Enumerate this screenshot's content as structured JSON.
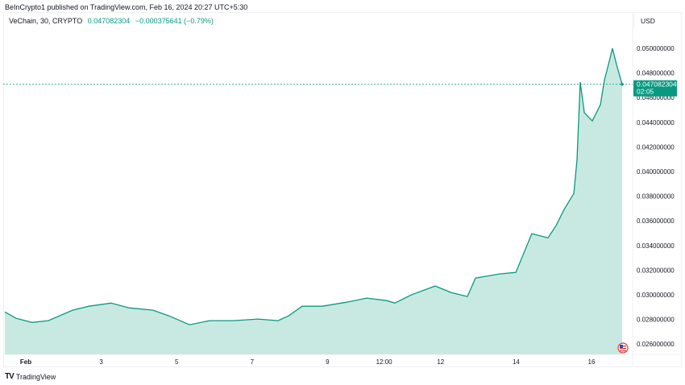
{
  "header": {
    "published": "BeInCrypto1 published on TradingView.com, Feb 16, 2024 20:27 UTC+5:30"
  },
  "legend": {
    "symbol": "VeChain, 30, CRYPTO",
    "price": "0.047082304",
    "change": "−0.000375641 (−0.79%)"
  },
  "currency": "USD",
  "last_price_label": {
    "price": "0.047082304",
    "countdown": "02:05"
  },
  "footer": {
    "brand": "TradingView"
  },
  "colors": {
    "line": "#089981",
    "fill": "#c8e9e1",
    "price_tag": "#089981"
  },
  "chart_data": {
    "type": "area",
    "grid": false,
    "ylim": [
      0.025,
      0.0513
    ],
    "y_ticks": [
      "0.050000000",
      "0.048000000",
      "0.046000000",
      "0.044000000",
      "0.042000000",
      "0.040000000",
      "0.038000000",
      "0.036000000",
      "0.034000000",
      "0.032000000",
      "0.030000000",
      "0.028000000",
      "0.026000000"
    ],
    "x_ticks": [
      {
        "label": "Feb",
        "t": "2024-02-01 00:00"
      },
      {
        "label": "3",
        "t": "2024-02-03 00:00"
      },
      {
        "label": "5",
        "t": "2024-02-05 00:00"
      },
      {
        "label": "7",
        "t": "2024-02-07 00:00"
      },
      {
        "label": "9",
        "t": "2024-02-09 00:00"
      },
      {
        "label": "12:00",
        "t": "2024-02-10 12:00"
      },
      {
        "label": "12",
        "t": "2024-02-12 00:00"
      },
      {
        "label": "14",
        "t": "2024-02-14 00:00"
      },
      {
        "label": "16",
        "t": "2024-02-16 00:00"
      }
    ],
    "series": [
      {
        "points": [
          [
            "2024-01-31 10:40",
            0.02861
          ],
          [
            "2024-01-31 17:50",
            0.02809
          ],
          [
            "2024-02-01 04:00",
            0.02776
          ],
          [
            "2024-02-01 14:20",
            0.0279
          ],
          [
            "2024-02-02 05:45",
            0.02875
          ],
          [
            "2024-02-02 16:00",
            0.02907
          ],
          [
            "2024-02-03 06:20",
            0.02933
          ],
          [
            "2024-02-03 17:40",
            0.02894
          ],
          [
            "2024-02-04 09:00",
            0.02875
          ],
          [
            "2024-02-04 19:15",
            0.02829
          ],
          [
            "2024-02-05 08:10",
            0.02757
          ],
          [
            "2024-02-05 20:55",
            0.0279
          ],
          [
            "2024-02-06 12:20",
            0.0279
          ],
          [
            "2024-02-07 03:40",
            0.02803
          ],
          [
            "2024-02-07 16:30",
            0.0279
          ],
          [
            "2024-02-07 23:10",
            0.02829
          ],
          [
            "2024-02-08 07:55",
            0.02907
          ],
          [
            "2024-02-08 20:40",
            0.02907
          ],
          [
            "2024-02-09 12:05",
            0.0294
          ],
          [
            "2024-02-10 00:55",
            0.02973
          ],
          [
            "2024-02-10 13:45",
            0.02953
          ],
          [
            "2024-02-10 18:50",
            0.02933
          ],
          [
            "2024-02-11 05:10",
            0.02999
          ],
          [
            "2024-02-11 20:30",
            0.03071
          ],
          [
            "2024-02-12 06:45",
            0.03018
          ],
          [
            "2024-02-12 17:00",
            0.02986
          ],
          [
            "2024-02-12 22:10",
            0.03136
          ],
          [
            "2024-02-13 13:30",
            0.03169
          ],
          [
            "2024-02-13 23:50",
            0.03182
          ],
          [
            "2024-02-14 10:00",
            0.03496
          ],
          [
            "2024-02-14 20:20",
            0.03463
          ],
          [
            "2024-02-15 01:25",
            0.03561
          ],
          [
            "2024-02-15 06:35",
            0.03692
          ],
          [
            "2024-02-15 12:45",
            0.03823
          ],
          [
            "2024-02-15 14:45",
            0.04097
          ],
          [
            "2024-02-15 16:50",
            0.04725
          ],
          [
            "2024-02-15 19:25",
            0.04477
          ],
          [
            "2024-02-16 00:30",
            0.04411
          ],
          [
            "2024-02-16 05:40",
            0.04542
          ],
          [
            "2024-02-16 08:10",
            0.04738
          ],
          [
            "2024-02-16 10:45",
            0.04869
          ],
          [
            "2024-02-16 13:20",
            0.05
          ],
          [
            "2024-02-16 15:55",
            0.04869
          ],
          [
            "2024-02-16 19:30",
            0.04708
          ]
        ]
      }
    ],
    "last_value": 0.047082304
  }
}
